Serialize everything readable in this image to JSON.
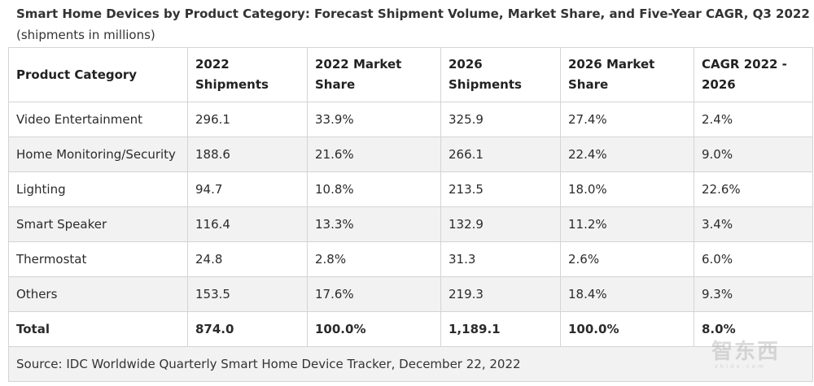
{
  "caption": {
    "title": "Smart Home Devices by Product Category: Forecast Shipment Volume, Market Share, and Five-Year CAGR, Q3 2022",
    "subtitle": "(shipments in millions)"
  },
  "columns": [
    "Product Category",
    "2022 Shipments",
    "2022 Market Share",
    "2026 Shipments",
    "2026 Market Share",
    "CAGR 2022 - 2026"
  ],
  "rows": [
    [
      "Video Entertainment",
      "296.1",
      "33.9%",
      "325.9",
      "27.4%",
      "2.4%"
    ],
    [
      "Home Monitoring/Security",
      "188.6",
      "21.6%",
      "266.1",
      "22.4%",
      "9.0%"
    ],
    [
      "Lighting",
      "94.7",
      "10.8%",
      "213.5",
      "18.0%",
      "22.6%"
    ],
    [
      "Smart Speaker",
      "116.4",
      "13.3%",
      "132.9",
      "11.2%",
      "3.4%"
    ],
    [
      "Thermostat",
      "24.8",
      "2.8%",
      "31.3",
      "2.6%",
      "6.0%"
    ],
    [
      "Others",
      "153.5",
      "17.6%",
      "219.3",
      "18.4%",
      "9.3%"
    ]
  ],
  "total": [
    "Total",
    "874.0",
    "100.0%",
    "1,189.1",
    "100.0%",
    "8.0%"
  ],
  "source": "Source: IDC Worldwide Quarterly Smart Home Device Tracker, December 22, 2022",
  "watermark": {
    "chars": "智东西",
    "sub": "zhidx.com"
  }
}
